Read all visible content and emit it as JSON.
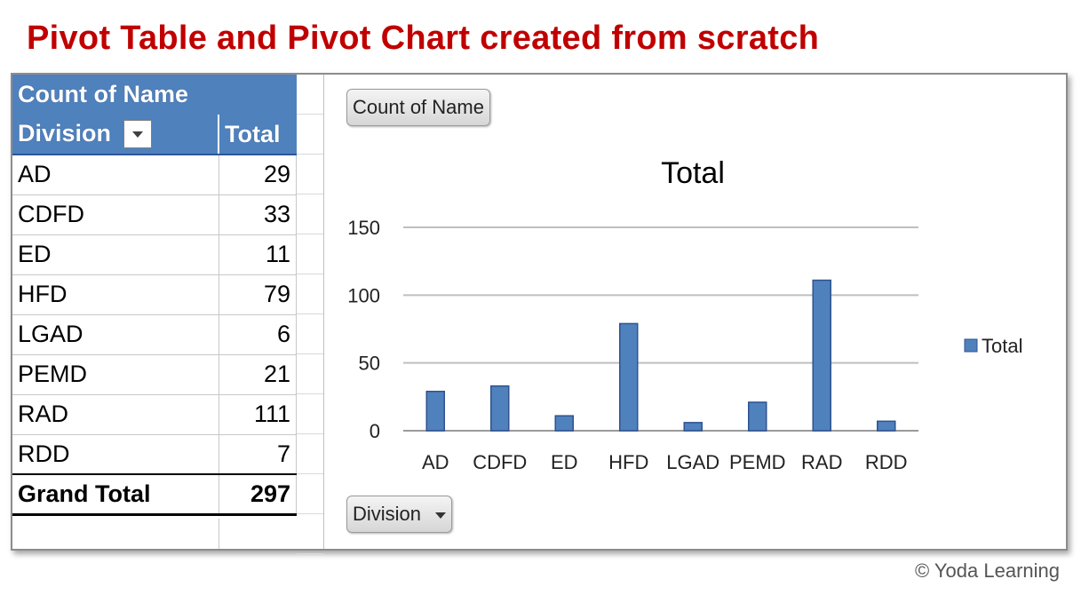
{
  "page_title": "Pivot Table and Pivot Chart created from scratch",
  "copyright": "© Yoda Learning",
  "pivot_table": {
    "value_field": "Count of Name",
    "row_field": "Division",
    "total_header": "Total",
    "rows": [
      {
        "label": "AD",
        "value": "29"
      },
      {
        "label": "CDFD",
        "value": "33"
      },
      {
        "label": "ED",
        "value": "11"
      },
      {
        "label": "HFD",
        "value": "79"
      },
      {
        "label": "LGAD",
        "value": "6"
      },
      {
        "label": "PEMD",
        "value": "21"
      },
      {
        "label": "RAD",
        "value": "111"
      },
      {
        "label": "RDD",
        "value": "7"
      }
    ],
    "grand_total_label": "Grand Total",
    "grand_total_value": "297"
  },
  "chart_buttons": {
    "value_button": "Count of Name",
    "axis_button": "Division"
  },
  "chart_data": {
    "type": "bar",
    "title": "Total",
    "categories": [
      "AD",
      "CDFD",
      "ED",
      "HFD",
      "LGAD",
      "PEMD",
      "RAD",
      "RDD"
    ],
    "series": [
      {
        "name": "Total",
        "values": [
          29,
          33,
          11,
          79,
          6,
          21,
          111,
          7
        ]
      }
    ],
    "ylim": [
      0,
      150
    ],
    "yticks": [
      0,
      50,
      100,
      150
    ],
    "grid": true,
    "legend": "right",
    "colors": {
      "bar": "#4f81bd",
      "bar_edge": "#2f528f",
      "grid": "#bfbfbf"
    }
  }
}
